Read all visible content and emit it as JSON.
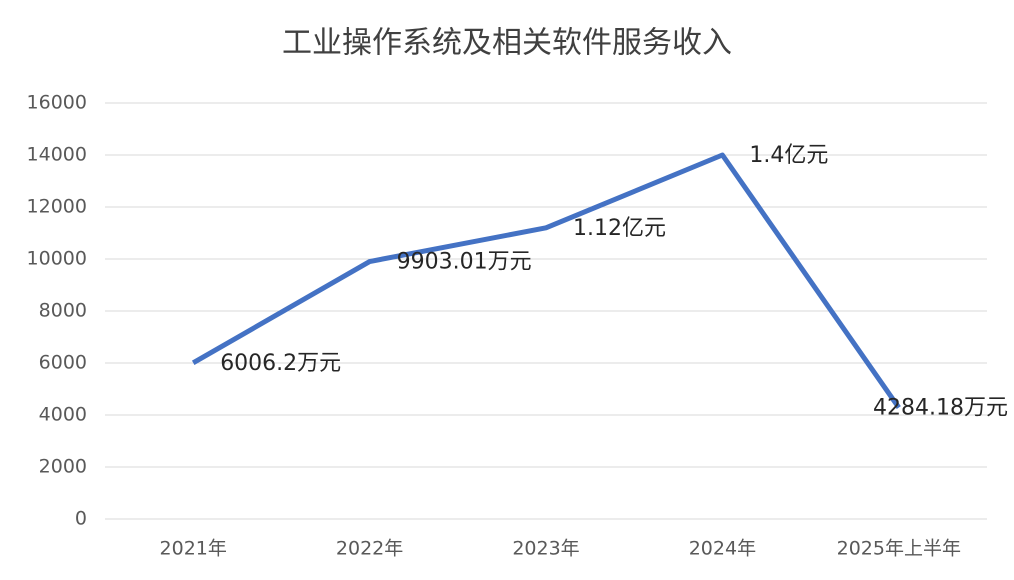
{
  "chart_data": {
    "type": "line",
    "title": "工业操作系统及相关软件服务收入",
    "categories": [
      "2021年",
      "2022年",
      "2023年",
      "2024年",
      "2025年上半年"
    ],
    "series": [
      {
        "name": "收入",
        "color": "#4472c4",
        "values": [
          6006.2,
          9903.01,
          11200,
          14000,
          4284.18
        ],
        "value_labels": [
          "6006.2万元",
          "9903.01万元",
          "1.12亿元",
          "1.4亿元",
          "4284.18万元"
        ]
      }
    ],
    "ylim": [
      0,
      16000
    ],
    "yticks": [
      0,
      2000,
      4000,
      6000,
      8000,
      10000,
      12000,
      14000,
      16000
    ],
    "grid": true
  }
}
